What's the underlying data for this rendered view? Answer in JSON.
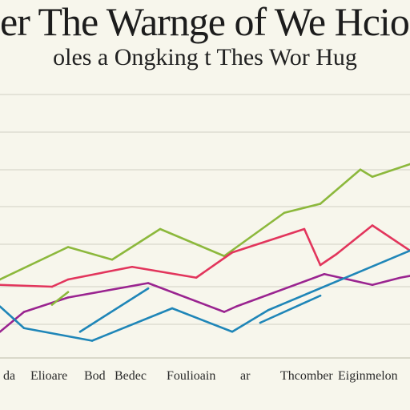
{
  "chart_data": {
    "type": "line",
    "title": "er The Warnge of We Hcion",
    "subtitle": "oles a Ongking t Thes Wor Hug",
    "x_captions": [
      "da",
      "Elioare",
      "Bod",
      "Bedec",
      "Foulioain",
      "ar",
      "Thcomber",
      "Eiginmelon"
    ],
    "grid": true,
    "legend": "none",
    "x": [
      0,
      30,
      65,
      85,
      100,
      115,
      140,
      165,
      185,
      200,
      210,
      215,
      245,
      280,
      290,
      295,
      325,
      335,
      355,
      380,
      400,
      405,
      420,
      445,
      450,
      465,
      470,
      490,
      500,
      512
    ],
    "ylim": [
      0,
      100
    ],
    "series": [
      {
        "color": "#8cb83c",
        "points": [
          [
            0,
            36
          ],
          [
            85,
            54
          ],
          [
            140,
            47
          ],
          [
            200,
            64
          ],
          [
            280,
            49
          ],
          [
            355,
            73
          ],
          [
            400,
            78
          ],
          [
            450,
            97
          ],
          [
            465,
            93
          ],
          [
            512,
            100
          ]
        ]
      },
      {
        "color": "#e2355c",
        "points": [
          [
            0,
            33
          ],
          [
            65,
            32
          ],
          [
            85,
            36
          ],
          [
            165,
            43
          ],
          [
            245,
            37
          ],
          [
            290,
            51
          ],
          [
            380,
            64
          ],
          [
            400,
            44
          ],
          [
            420,
            50
          ],
          [
            465,
            66
          ],
          [
            512,
            52
          ]
        ]
      },
      {
        "color": "#9a2490",
        "points": [
          [
            0,
            7
          ],
          [
            30,
            18
          ],
          [
            85,
            26
          ],
          [
            185,
            34
          ],
          [
            280,
            18
          ],
          [
            295,
            21
          ],
          [
            405,
            39
          ],
          [
            465,
            33
          ],
          [
            500,
            37
          ],
          [
            512,
            38
          ]
        ]
      },
      {
        "color": "#1f86b8",
        "points": [
          [
            0,
            21
          ],
          [
            30,
            9
          ],
          [
            115,
            2
          ],
          [
            215,
            20
          ],
          [
            290,
            7
          ],
          [
            335,
            19
          ],
          [
            512,
            52
          ]
        ]
      },
      {
        "color": "#1f86b8",
        "points": [
          [
            100,
            7
          ],
          [
            185,
            31
          ]
        ]
      },
      {
        "color": "#1f86b8",
        "points": [
          [
            325,
            12
          ],
          [
            400,
            27
          ]
        ]
      },
      {
        "color": "#8cb83c",
        "points": [
          [
            65,
            22
          ],
          [
            85,
            29
          ]
        ]
      }
    ]
  }
}
